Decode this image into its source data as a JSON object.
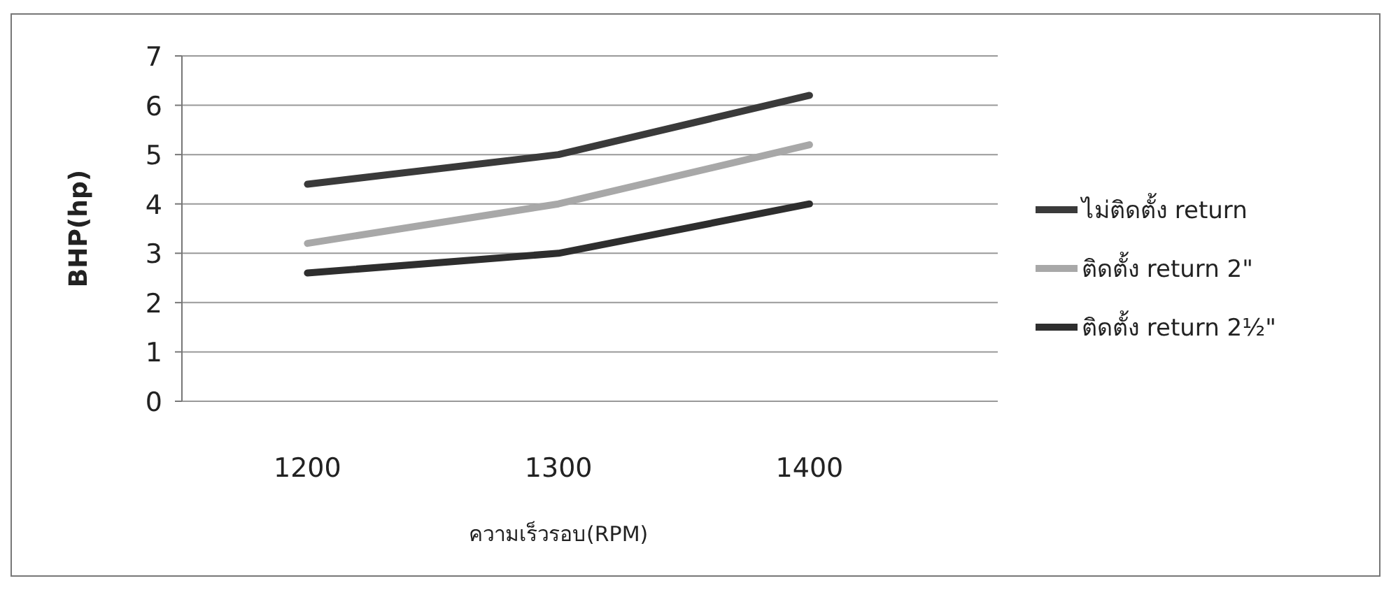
{
  "chart_data": {
    "type": "line",
    "categories": [
      "1200",
      "1300",
      "1400"
    ],
    "series": [
      {
        "name": "ไม่ติดตั้ง return",
        "color": "#3a3a3a",
        "values": [
          4.4,
          5.0,
          6.2
        ]
      },
      {
        "name": "ติดตั้ง return 2\"",
        "color": "#a8a8a8",
        "values": [
          3.2,
          4.0,
          5.2
        ]
      },
      {
        "name": "ติดตั้ง return 2½\"",
        "color": "#2e2e2e",
        "values": [
          2.6,
          3.0,
          4.0
        ]
      }
    ],
    "xlabel": "ความเร็วรอบ(RPM)",
    "ylabel": "BHP(hp)",
    "ylim": [
      0,
      7
    ],
    "yticks": [
      0,
      1,
      2,
      3,
      4,
      5,
      6,
      7
    ],
    "grid": "y",
    "legend": "right",
    "marker": "none",
    "line_style": "solid"
  }
}
